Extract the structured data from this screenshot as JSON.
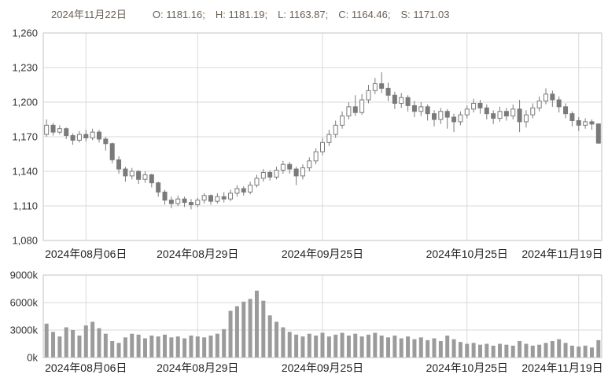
{
  "header": {
    "date": "2024年11月22日",
    "open": "O: 1181.16;",
    "high": "H: 1181.19;",
    "low": "L: 1163.87;",
    "close": "C: 1164.46;",
    "settlement": "S: 1171.03"
  },
  "colors": {
    "background": "#ffffff",
    "grid": "#d9d9d9",
    "border": "#c3c3c3",
    "candle_stroke": "#7a7a7a",
    "up_candle": "#ffffff",
    "down_candle": "#7a7a7a",
    "volume_bar": "#9b9b9b",
    "axis_text": "#333333",
    "header_text": "#6a5f52"
  },
  "chart_data": {
    "type": "candlestick+volume",
    "title": "",
    "price_panel": {
      "ylim": [
        1080,
        1260
      ],
      "grid": true,
      "ticks": [
        {
          "value": 1260,
          "label": "1,260"
        },
        {
          "value": 1230,
          "label": "1,230"
        },
        {
          "value": 1200,
          "label": "1,200"
        },
        {
          "value": 1170,
          "label": "1,170"
        },
        {
          "value": 1140,
          "label": "1,140"
        },
        {
          "value": 1110,
          "label": "1,110"
        },
        {
          "value": 1080,
          "label": "1,080"
        }
      ]
    },
    "volume_panel": {
      "ylim": [
        0,
        9000
      ],
      "unit": "k",
      "grid": true,
      "ticks": [
        {
          "value": 9000,
          "label": "9000k"
        },
        {
          "value": 6000,
          "label": "6000k"
        },
        {
          "value": 3000,
          "label": "3000k"
        },
        {
          "value": 0,
          "label": "0k"
        }
      ]
    },
    "x_ticks": [
      {
        "date": "2024-08-06",
        "label": "2024年08月06日"
      },
      {
        "date": "2024-08-29",
        "label": "2024年08月29日"
      },
      {
        "date": "2024-09-25",
        "label": "2024年09月25日"
      },
      {
        "date": "2024-10-25",
        "label": "2024年10月25日"
      },
      {
        "date": "2024-11-19",
        "label": "2024年11月19日"
      }
    ],
    "ohlcv_columns": [
      "date",
      "open",
      "high",
      "low",
      "close",
      "volume_k"
    ],
    "ohlcv": [
      [
        "2024-07-29",
        1172,
        1185,
        1170,
        1180,
        3700
      ],
      [
        "2024-07-30",
        1180,
        1182,
        1171,
        1174,
        2800
      ],
      [
        "2024-07-31",
        1174,
        1180,
        1172,
        1177,
        2300
      ],
      [
        "2024-08-01",
        1177,
        1178,
        1168,
        1171,
        3300
      ],
      [
        "2024-08-02",
        1171,
        1173,
        1163,
        1167,
        3000
      ],
      [
        "2024-08-05",
        1167,
        1175,
        1165,
        1172,
        2400
      ],
      [
        "2024-08-06",
        1172,
        1176,
        1166,
        1169,
        3500
      ],
      [
        "2024-08-07",
        1169,
        1177,
        1167,
        1174,
        3900
      ],
      [
        "2024-08-08",
        1174,
        1176,
        1165,
        1168,
        3200
      ],
      [
        "2024-08-09",
        1168,
        1170,
        1158,
        1164,
        2600
      ],
      [
        "2024-08-12",
        1164,
        1165,
        1147,
        1150,
        1800
      ],
      [
        "2024-08-13",
        1150,
        1153,
        1138,
        1142,
        1600
      ],
      [
        "2024-08-14",
        1142,
        1144,
        1131,
        1136,
        2200
      ],
      [
        "2024-08-15",
        1136,
        1143,
        1133,
        1140,
        2600
      ],
      [
        "2024-08-16",
        1140,
        1141,
        1129,
        1133,
        2500
      ],
      [
        "2024-08-19",
        1133,
        1140,
        1130,
        1137,
        2100
      ],
      [
        "2024-08-20",
        1137,
        1138,
        1126,
        1130,
        2400
      ],
      [
        "2024-08-21",
        1130,
        1131,
        1118,
        1122,
        2300
      ],
      [
        "2024-08-22",
        1122,
        1124,
        1111,
        1115,
        2500
      ],
      [
        "2024-08-23",
        1115,
        1118,
        1108,
        1112,
        2200
      ],
      [
        "2024-08-26",
        1112,
        1119,
        1110,
        1116,
        2300
      ],
      [
        "2024-08-27",
        1116,
        1118,
        1109,
        1113,
        2100
      ],
      [
        "2024-08-28",
        1113,
        1116,
        1107,
        1111,
        2400
      ],
      [
        "2024-08-29",
        1111,
        1117,
        1109,
        1115,
        2300
      ],
      [
        "2024-08-30",
        1115,
        1121,
        1112,
        1119,
        2200
      ],
      [
        "2024-09-02",
        1119,
        1120,
        1111,
        1114,
        2400
      ],
      [
        "2024-09-03",
        1114,
        1121,
        1112,
        1118,
        2600
      ],
      [
        "2024-09-04",
        1118,
        1122,
        1113,
        1116,
        3100
      ],
      [
        "2024-09-05",
        1116,
        1124,
        1114,
        1121,
        5100
      ],
      [
        "2024-09-06",
        1121,
        1128,
        1118,
        1125,
        5600
      ],
      [
        "2024-09-09",
        1125,
        1127,
        1119,
        1122,
        6100
      ],
      [
        "2024-09-10",
        1122,
        1131,
        1120,
        1128,
        6400
      ],
      [
        "2024-09-11",
        1128,
        1137,
        1126,
        1134,
        7300
      ],
      [
        "2024-09-12",
        1134,
        1142,
        1131,
        1139,
        6200
      ],
      [
        "2024-09-13",
        1139,
        1141,
        1132,
        1135,
        4600
      ],
      [
        "2024-09-16",
        1135,
        1144,
        1133,
        1141,
        3900
      ],
      [
        "2024-09-17",
        1141,
        1149,
        1138,
        1146,
        3300
      ],
      [
        "2024-09-18",
        1146,
        1148,
        1138,
        1142,
        2800
      ],
      [
        "2024-09-19",
        1142,
        1144,
        1128,
        1136,
        2500
      ],
      [
        "2024-09-20",
        1136,
        1146,
        1133,
        1143,
        2300
      ],
      [
        "2024-09-23",
        1143,
        1152,
        1140,
        1149,
        2600
      ],
      [
        "2024-09-24",
        1149,
        1160,
        1146,
        1157,
        2400
      ],
      [
        "2024-09-25",
        1157,
        1169,
        1154,
        1165,
        2700
      ],
      [
        "2024-09-26",
        1165,
        1176,
        1162,
        1172,
        2300
      ],
      [
        "2024-09-27",
        1172,
        1184,
        1169,
        1180,
        2500
      ],
      [
        "2024-09-30",
        1180,
        1192,
        1177,
        1188,
        2700
      ],
      [
        "2024-10-01",
        1188,
        1200,
        1185,
        1196,
        2400
      ],
      [
        "2024-10-02",
        1196,
        1206,
        1188,
        1191,
        2600
      ],
      [
        "2024-10-03",
        1191,
        1207,
        1189,
        1202,
        2300
      ],
      [
        "2024-10-04",
        1202,
        1215,
        1199,
        1210,
        2500
      ],
      [
        "2024-10-07",
        1210,
        1221,
        1207,
        1216,
        2700
      ],
      [
        "2024-10-08",
        1216,
        1226,
        1208,
        1212,
        2400
      ],
      [
        "2024-10-09",
        1212,
        1217,
        1201,
        1206,
        2200
      ],
      [
        "2024-10-10",
        1206,
        1209,
        1194,
        1199,
        2400
      ],
      [
        "2024-10-11",
        1199,
        1208,
        1195,
        1204,
        2100
      ],
      [
        "2024-10-14",
        1204,
        1206,
        1192,
        1197,
        2300
      ],
      [
        "2024-10-15",
        1197,
        1201,
        1187,
        1192,
        2000
      ],
      [
        "2024-10-16",
        1192,
        1200,
        1188,
        1196,
        2200
      ],
      [
        "2024-10-17",
        1196,
        1198,
        1184,
        1190,
        1900
      ],
      [
        "2024-10-18",
        1190,
        1193,
        1179,
        1185,
        2100
      ],
      [
        "2024-10-21",
        1185,
        1195,
        1181,
        1192,
        1800
      ],
      [
        "2024-10-22",
        1192,
        1194,
        1177,
        1187,
        2400
      ],
      [
        "2024-10-23",
        1187,
        1190,
        1174,
        1183,
        2000
      ],
      [
        "2024-10-24",
        1183,
        1192,
        1180,
        1189,
        1700
      ],
      [
        "2024-10-25",
        1189,
        1197,
        1186,
        1194,
        1500
      ],
      [
        "2024-10-28",
        1194,
        1203,
        1191,
        1199,
        1600
      ],
      [
        "2024-10-29",
        1199,
        1202,
        1190,
        1195,
        1400
      ],
      [
        "2024-10-30",
        1195,
        1198,
        1185,
        1190,
        1500
      ],
      [
        "2024-10-31",
        1190,
        1193,
        1181,
        1186,
        1300
      ],
      [
        "2024-11-01",
        1186,
        1196,
        1183,
        1192,
        1500
      ],
      [
        "2024-11-04",
        1192,
        1195,
        1184,
        1188,
        1400
      ],
      [
        "2024-11-05",
        1188,
        1198,
        1185,
        1194,
        1300
      ],
      [
        "2024-11-06",
        1194,
        1202,
        1174,
        1183,
        1800
      ],
      [
        "2024-11-07",
        1183,
        1193,
        1178,
        1189,
        1500
      ],
      [
        "2024-11-08",
        1189,
        1199,
        1186,
        1195,
        1300
      ],
      [
        "2024-11-11",
        1195,
        1205,
        1192,
        1201,
        1400
      ],
      [
        "2024-11-12",
        1201,
        1212,
        1198,
        1207,
        1600
      ],
      [
        "2024-11-13",
        1207,
        1210,
        1196,
        1202,
        1800
      ],
      [
        "2024-11-14",
        1202,
        1205,
        1191,
        1196,
        2000
      ],
      [
        "2024-11-15",
        1196,
        1199,
        1186,
        1190,
        1600
      ],
      [
        "2024-11-18",
        1190,
        1192,
        1179,
        1184,
        1300
      ],
      [
        "2024-11-19",
        1184,
        1187,
        1175,
        1180,
        1200
      ],
      [
        "2024-11-20",
        1180,
        1186,
        1177,
        1183,
        1300
      ],
      [
        "2024-11-21",
        1183,
        1185,
        1176,
        1181,
        1100
      ],
      [
        "2024-11-22",
        1181.16,
        1181.19,
        1163.87,
        1164.46,
        1900
      ]
    ]
  }
}
